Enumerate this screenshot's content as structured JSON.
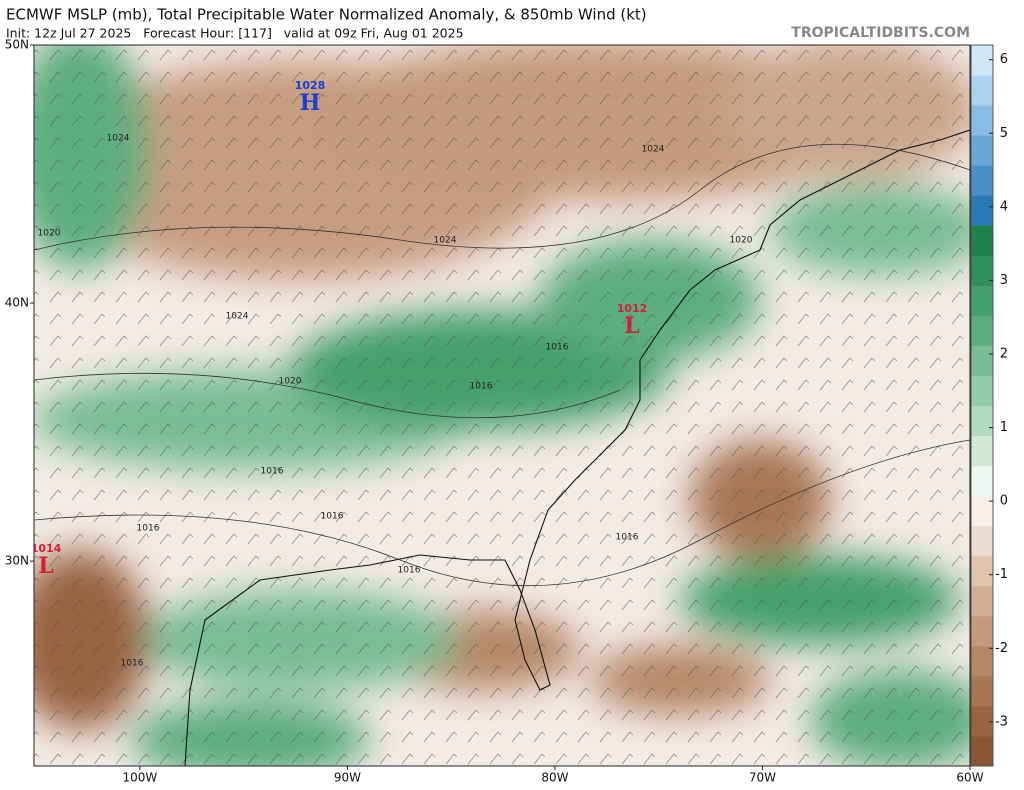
{
  "header": {
    "title": "ECMWF MSLP (mb), Total Precipitable Water Normalized Anomaly, & 850mb Wind (kt)",
    "subtitle": "Init: 12z Jul 27 2025   Forecast Hour: [117]   valid at 09z Fri, Aug 01 2025",
    "site": "TROPICALTIDBITS.COM"
  },
  "map": {
    "latlim": [
      22.06,
      50
    ],
    "lonlim": [
      -105.1,
      -60
    ],
    "lat_ticks": [
      {
        "value": 50,
        "label": "50N"
      },
      {
        "value": 40,
        "label": "40N"
      },
      {
        "value": 30,
        "label": "30N"
      }
    ],
    "lon_ticks": [
      {
        "value": -100,
        "label": "100W"
      },
      {
        "value": -90,
        "label": "90W"
      },
      {
        "value": -80,
        "label": "80W"
      },
      {
        "value": -70,
        "label": "70W"
      },
      {
        "value": -60,
        "label": "60W"
      }
    ],
    "isobar_labels": [
      "1024",
      "1024",
      "1024",
      "1024",
      "1020",
      "1020",
      "1020",
      "1016",
      "1016",
      "1016",
      "1016",
      "1016",
      "1016",
      "1016",
      "1016"
    ],
    "pressure_centers": [
      {
        "type": "H",
        "value": "1028"
      },
      {
        "type": "L",
        "value": "1012"
      },
      {
        "type": "L",
        "value": "1014"
      }
    ]
  },
  "colorbar": {
    "lim": [
      -3.6,
      6.2
    ],
    "ticks": [
      6,
      5,
      4,
      3,
      2,
      1,
      0,
      -1,
      -2,
      -3
    ],
    "colors": [
      "#8a5535",
      "#9a6443",
      "#a87654",
      "#b68767",
      "#c49a7c",
      "#d2ae95",
      "#dfc4b0",
      "#ecdccf",
      "#f7f0ea",
      "#eef6f1",
      "#cfe8d8",
      "#b2dbc1",
      "#95ccaa",
      "#78bd93",
      "#5dae7e",
      "#44a06b",
      "#2f9159",
      "#1f8049",
      "#2b7ab8",
      "#4a8fc8",
      "#6aa6d6",
      "#8abce3",
      "#abd2ee",
      "#cfe6f7"
    ]
  }
}
